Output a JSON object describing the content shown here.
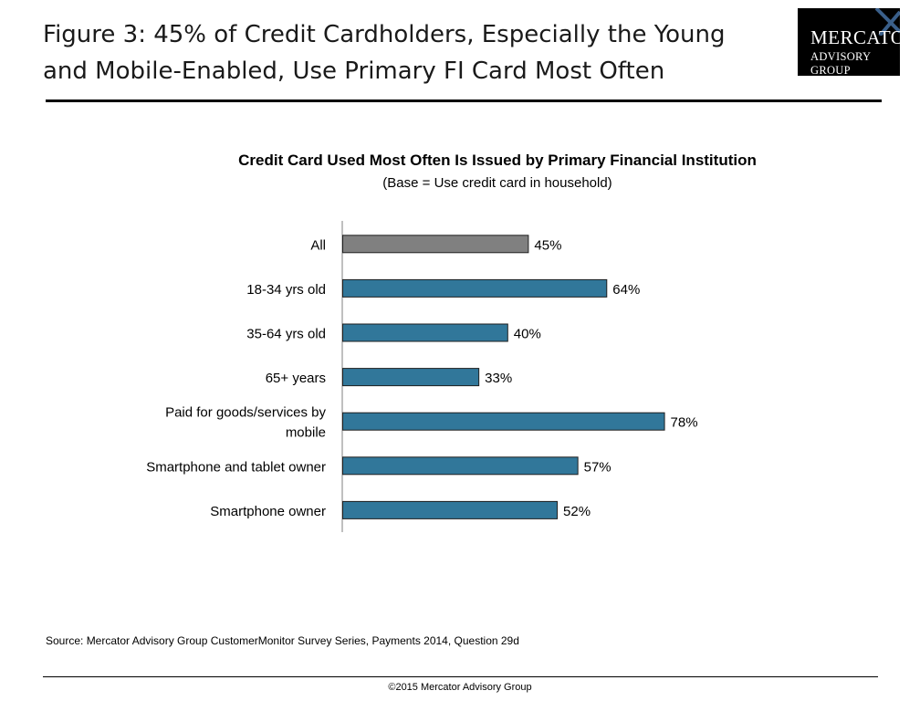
{
  "figure_title": "Figure 3: 45% of Credit Cardholders, Especially the Young and Mobile-Enabled, Use Primary FI Card Most Often",
  "logo": {
    "line1": "MERCATOR",
    "line2": "ADVISORY GROUP",
    "icon": "x-mark-icon"
  },
  "chart_data": {
    "type": "bar",
    "orientation": "horizontal",
    "title": "Credit Card Used Most Often Is Issued by Primary Financial Institution",
    "subtitle": "(Base = Use credit card in household)",
    "categories": [
      "All",
      "18-34 yrs old",
      "35-64 yrs old",
      "65+ years",
      "Paid for goods/services by mobile",
      "Smartphone and tablet owner",
      "Smartphone owner"
    ],
    "values": [
      45,
      64,
      40,
      33,
      78,
      57,
      52
    ],
    "value_labels": [
      "45%",
      "64%",
      "40%",
      "33%",
      "78%",
      "57%",
      "52%"
    ],
    "unit": "%",
    "xlim": [
      0,
      100
    ],
    "bar_colors": [
      "#808080",
      "#31779a",
      "#31779a",
      "#31779a",
      "#31779a",
      "#31779a",
      "#31779a"
    ],
    "grid": false,
    "legend": "none"
  },
  "source": "Source: Mercator Advisory Group CustomerMonitor Survey Series, Payments 2014, Question 29d",
  "copyright": "©2015 Mercator Advisory Group"
}
